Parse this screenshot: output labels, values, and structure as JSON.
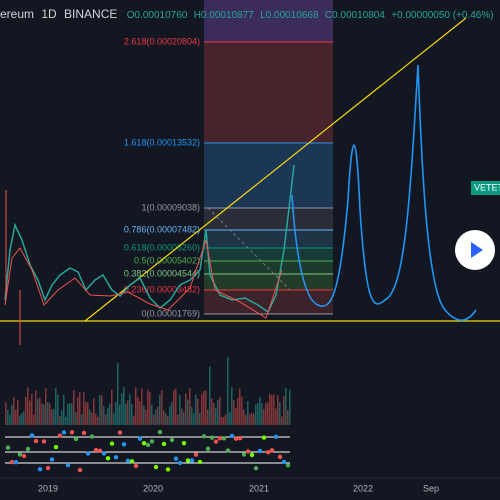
{
  "header": {
    "symbol": "ereum",
    "interval": "1D",
    "exchange": "BINANCE",
    "open": "O0.00010760",
    "high": "H0.00010877",
    "low": "L0.00010668",
    "close": "C0.00010804",
    "change": "+0.00000050 (+0.46%)"
  },
  "fib_levels": [
    {
      "label": "2.618(0.00020804)",
      "color": "#f23645"
    },
    {
      "label": "1.618(0.00013532)",
      "color": "#2196f3"
    },
    {
      "label": "1(0.00009038)",
      "color": "#9598a1"
    },
    {
      "label": "0.786(0.00007482)",
      "color": "#64b5f6"
    },
    {
      "label": "0.618(0.00006260)",
      "color": "#089981"
    },
    {
      "label": "0.5(0.00005402)",
      "color": "#4caf50"
    },
    {
      "label": "0.382(0.00004544)",
      "color": "#81c784"
    },
    {
      "label": "0.236(0.00003482)",
      "color": "#f23645"
    },
    {
      "label": "0(0.00001769)",
      "color": "#9598a1"
    }
  ],
  "price_badge": "VETET",
  "x_axis": [
    "2019",
    "2020",
    "2021",
    "2022",
    "Sep"
  ]
}
